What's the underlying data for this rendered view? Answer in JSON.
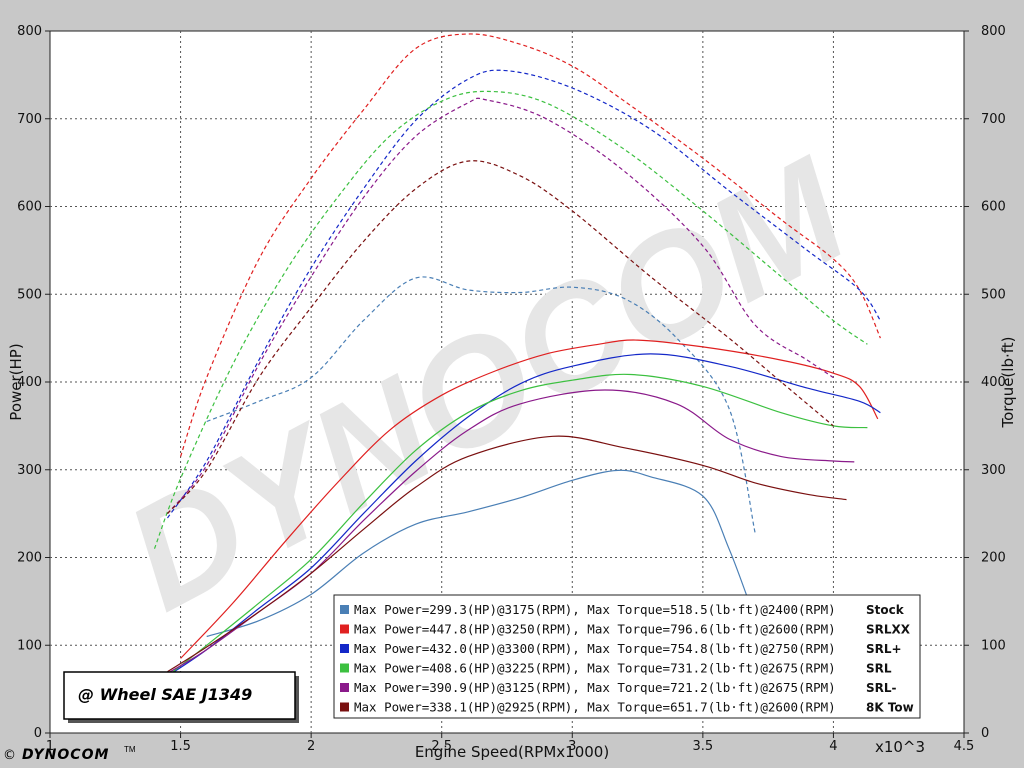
{
  "chart_data": {
    "type": "line",
    "xlabel": "Engine Speed(RPMx1000)",
    "x_multiplier": "x10^3",
    "ylabel_left": "Power(HP)",
    "ylabel_right": "Torque(lb·ft)",
    "xlim": [
      1.0,
      4.5
    ],
    "ylim_left": [
      0,
      800
    ],
    "ylim_right": [
      0,
      800
    ],
    "x_ticks": [
      "1",
      "1.5",
      "2",
      "2.5",
      "3",
      "3.5",
      "4",
      "4.5"
    ],
    "y_ticks_left": [
      "0",
      "100",
      "200",
      "300",
      "400",
      "500",
      "600",
      "700",
      "800"
    ],
    "y_ticks_right": [
      "0",
      "100",
      "200",
      "300",
      "400",
      "500",
      "600",
      "700",
      "800"
    ],
    "grid": true,
    "badge": "@ Wheel SAE J1349",
    "watermark": "DYNOCOM",
    "legend": {
      "placement": "bottom-right",
      "entries": [
        {
          "text": "Max Power=299.3(HP)@3175(RPM), Max Torque=518.5(lb·ft)@2400(RPM)",
          "name": "Stock",
          "color": "#4a7fb5"
        },
        {
          "text": "Max Power=447.8(HP)@3250(RPM), Max Torque=796.6(lb·ft)@2600(RPM)",
          "name": "SRLXX",
          "color": "#e02020"
        },
        {
          "text": "Max Power=432.0(HP)@3300(RPM), Max Torque=754.8(lb·ft)@2750(RPM)",
          "name": "SRL+",
          "color": "#1428c8"
        },
        {
          "text": "Max Power=408.6(HP)@3225(RPM), Max Torque=731.2(lb·ft)@2675(RPM)",
          "name": "SRL",
          "color": "#3cc040"
        },
        {
          "text": "Max Power=390.9(HP)@3125(RPM), Max Torque=721.2(lb·ft)@2675(RPM)",
          "name": "SRL-",
          "color": "#8a1a8a"
        },
        {
          "text": "Max Power=338.1(HP)@2925(RPM), Max Torque=651.7(lb·ft)@2600(RPM)",
          "name": "8K Tow",
          "color": "#7a1010"
        }
      ]
    },
    "series": [
      {
        "name": "Stock",
        "color": "#4a7fb5",
        "power": {
          "x": [
            1.6,
            1.8,
            2.0,
            2.2,
            2.4,
            2.6,
            2.8,
            3.0,
            3.175,
            3.3,
            3.5,
            3.6,
            3.7
          ],
          "y": [
            110,
            128,
            158,
            205,
            238,
            252,
            268,
            288,
            299.3,
            292,
            270,
            210,
            130
          ]
        },
        "torque": {
          "x": [
            1.6,
            1.8,
            2.0,
            2.2,
            2.4,
            2.6,
            2.8,
            3.0,
            3.2,
            3.4,
            3.6,
            3.7
          ],
          "y": [
            355,
            378,
            405,
            470,
            518.5,
            505,
            502,
            508,
            495,
            450,
            370,
            228
          ]
        }
      },
      {
        "name": "SRLXX",
        "color": "#e02020",
        "power": {
          "x": [
            1.5,
            1.7,
            1.9,
            2.1,
            2.3,
            2.5,
            2.7,
            2.9,
            3.1,
            3.25,
            3.5,
            3.8,
            4.0,
            4.1,
            4.17
          ],
          "y": [
            85,
            148,
            218,
            285,
            345,
            385,
            412,
            432,
            443,
            447.8,
            440,
            425,
            410,
            395,
            358
          ]
        },
        "torque": {
          "x": [
            1.5,
            1.6,
            1.8,
            2.0,
            2.2,
            2.4,
            2.6,
            2.8,
            3.0,
            3.2,
            3.5,
            3.8,
            4.0,
            4.1,
            4.18
          ],
          "y": [
            315,
            405,
            540,
            632,
            710,
            780,
            796.6,
            785,
            760,
            720,
            655,
            585,
            540,
            505,
            450
          ]
        }
      },
      {
        "name": "SRL+",
        "color": "#1428c8",
        "power": {
          "x": [
            1.45,
            1.6,
            1.8,
            2.0,
            2.2,
            2.4,
            2.6,
            2.8,
            3.0,
            3.3,
            3.6,
            3.9,
            4.1,
            4.18
          ],
          "y": [
            65,
            95,
            142,
            188,
            250,
            310,
            360,
            398,
            418,
            432,
            418,
            393,
            378,
            365
          ]
        },
        "torque": {
          "x": [
            1.45,
            1.6,
            1.8,
            2.0,
            2.2,
            2.4,
            2.6,
            2.75,
            3.0,
            3.3,
            3.6,
            3.9,
            4.1,
            4.18
          ],
          "y": [
            245,
            310,
            425,
            530,
            620,
            698,
            745,
            754.8,
            735,
            688,
            618,
            550,
            505,
            470
          ]
        }
      },
      {
        "name": "SRL",
        "color": "#3cc040",
        "power": {
          "x": [
            1.45,
            1.6,
            1.8,
            2.0,
            2.2,
            2.4,
            2.6,
            2.8,
            3.0,
            3.225,
            3.5,
            3.8,
            4.0,
            4.13
          ],
          "y": [
            65,
            100,
            148,
            198,
            262,
            322,
            365,
            390,
            402,
            408.6,
            395,
            365,
            350,
            348
          ]
        },
        "torque": {
          "x": [
            1.4,
            1.5,
            1.7,
            1.9,
            2.1,
            2.3,
            2.5,
            2.675,
            2.9,
            3.2,
            3.5,
            3.8,
            4.0,
            4.13
          ],
          "y": [
            210,
            290,
            420,
            525,
            610,
            680,
            720,
            731.2,
            718,
            665,
            595,
            520,
            470,
            443
          ]
        }
      },
      {
        "name": "SRL-",
        "color": "#8a1a8a",
        "power": {
          "x": [
            1.45,
            1.6,
            1.8,
            2.0,
            2.2,
            2.4,
            2.6,
            2.8,
            3.125,
            3.4,
            3.6,
            3.8,
            4.0,
            4.08
          ],
          "y": [
            68,
            95,
            138,
            182,
            242,
            298,
            345,
            375,
            390.9,
            375,
            335,
            315,
            310,
            309
          ]
        },
        "torque": {
          "x": [
            1.45,
            1.6,
            1.8,
            2.0,
            2.2,
            2.4,
            2.6,
            2.675,
            2.9,
            3.2,
            3.5,
            3.7,
            3.9,
            4.0
          ],
          "y": [
            250,
            305,
            420,
            520,
            610,
            680,
            718,
            721.2,
            700,
            640,
            555,
            465,
            425,
            405
          ]
        }
      },
      {
        "name": "8K Tow",
        "color": "#7a1010",
        "power": {
          "x": [
            1.45,
            1.6,
            1.8,
            2.0,
            2.2,
            2.4,
            2.6,
            2.925,
            3.2,
            3.5,
            3.7,
            3.9,
            4.05
          ],
          "y": [
            70,
            98,
            138,
            182,
            232,
            280,
            315,
            338.1,
            325,
            305,
            285,
            272,
            266
          ]
        },
        "torque": {
          "x": [
            1.45,
            1.6,
            1.8,
            2.0,
            2.2,
            2.4,
            2.6,
            2.8,
            3.0,
            3.3,
            3.6,
            3.8,
            4.0
          ],
          "y": [
            250,
            300,
            405,
            485,
            560,
            620,
            651.7,
            635,
            595,
            520,
            450,
            400,
            350
          ]
        }
      }
    ]
  }
}
